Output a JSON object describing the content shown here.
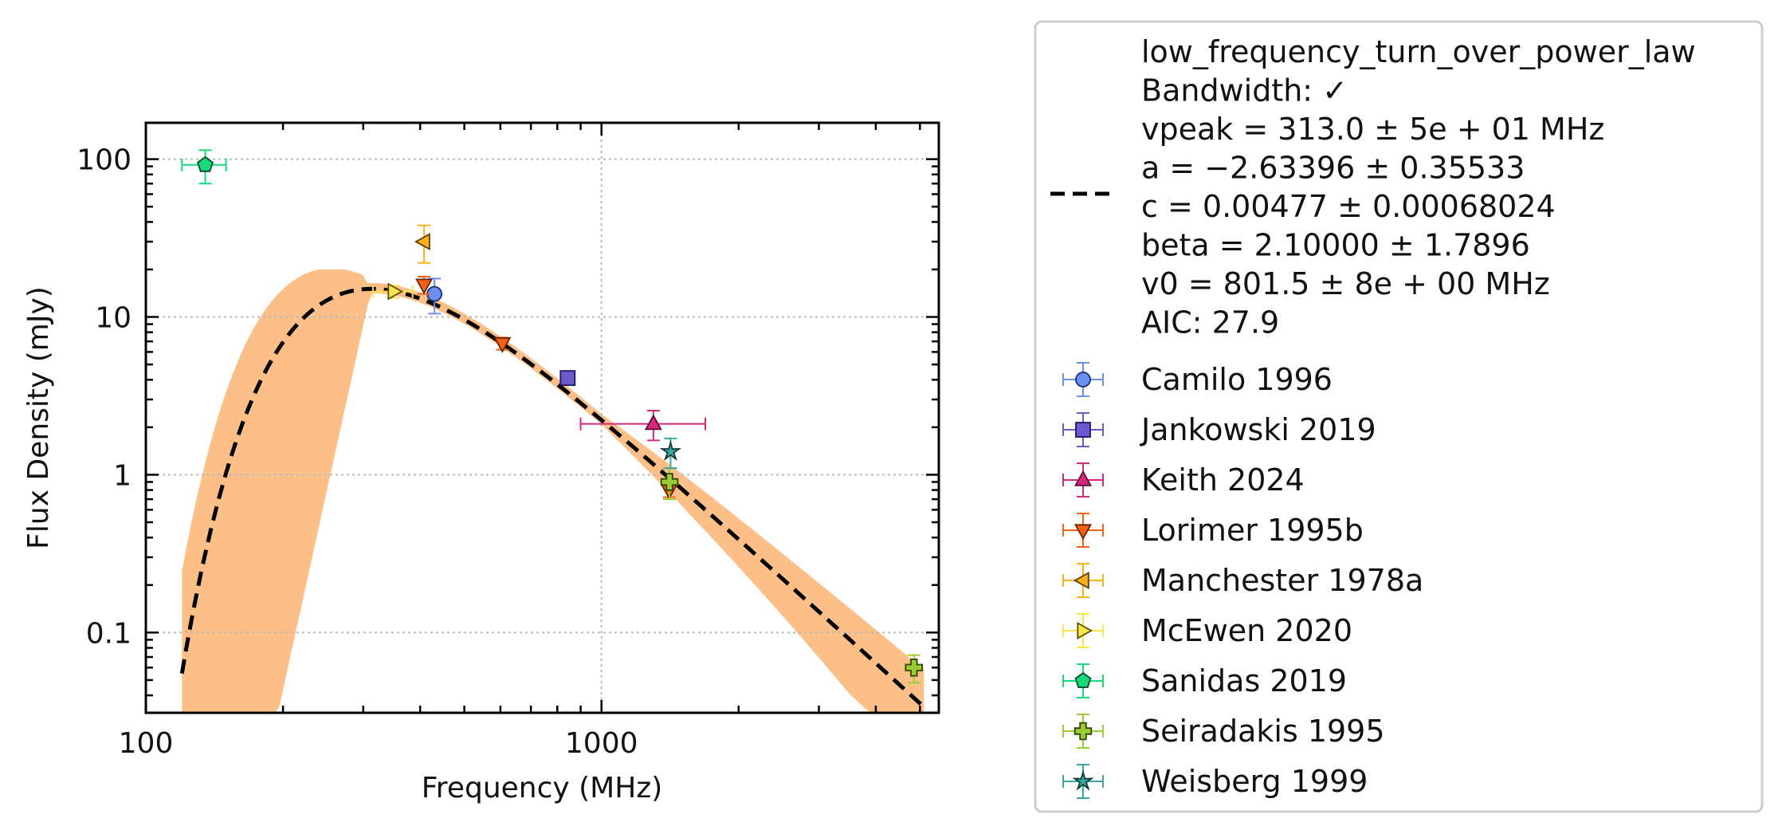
{
  "chart_data": {
    "type": "scatter",
    "title": "",
    "xlabel": "Frequency (MHz)",
    "ylabel": "Flux Density (mJy)",
    "xscale": "log",
    "yscale": "log",
    "xlim": [
      100,
      5500
    ],
    "ylim": [
      0.031,
      170
    ],
    "x_ticks": [
      100,
      1000
    ],
    "x_tick_labels": [
      "100",
      "1000"
    ],
    "y_ticks": [
      0.1,
      1,
      10,
      100
    ],
    "y_tick_labels": [
      "0.1",
      "1",
      "10",
      "100"
    ],
    "grid": true,
    "legend_position": "outside-right",
    "fit": {
      "model": "low_frequency_turn_over_power_law",
      "line_style": "dashed",
      "line_color": "#000000",
      "band_color": "#fdbf88",
      "parameters": {
        "vpeak": 313.0,
        "a": -2.63396,
        "c": 0.00477,
        "beta": 2.1,
        "v0": 801.5
      },
      "x_range": [
        120,
        5100
      ],
      "legend_lines": [
        "low_frequency_turn_over_power_law",
        "Bandwidth: ✓",
        "vpeak = 313.0 ± 5e + 01 MHz",
        "a = −2.63396 ± 0.35533",
        "c = 0.00477 ± 0.00068024",
        "beta = 2.10000 ± 1.7896",
        "v0 = 801.5 ± 8e + 00 MHz",
        "AIC: 27.9"
      ]
    },
    "series": [
      {
        "name": "Camilo 1996",
        "marker": "circle",
        "color": "#6b8ff0",
        "edge": "#1a2c6e",
        "points": [
          {
            "x": 430,
            "y": 14,
            "xerr": [
              0,
              0
            ],
            "yerr": [
              3.5,
              3.5
            ]
          }
        ]
      },
      {
        "name": "Jankowski 2019",
        "marker": "square",
        "color": "#6a5acd",
        "edge": "#1f1660",
        "points": [
          {
            "x": 843,
            "y": 4.1,
            "xerr": [
              0,
              0
            ],
            "yerr": [
              0.35,
              0.35
            ]
          }
        ]
      },
      {
        "name": "Keith 2024",
        "marker": "triangle-up",
        "color": "#d6287f",
        "edge": "#5c0a34",
        "points": [
          {
            "x": 1300,
            "y": 2.1,
            "xerr": [
              400,
              390
            ],
            "yerr": [
              0.45,
              0.45
            ]
          }
        ]
      },
      {
        "name": "Lorimer 1995b",
        "marker": "triangle-down",
        "color": "#f26318",
        "edge": "#6b2200",
        "points": [
          {
            "x": 408,
            "y": 16,
            "xerr": [
              0,
              0
            ],
            "yerr": [
              2,
              2
            ]
          },
          {
            "x": 606,
            "y": 6.8,
            "xerr": [
              0,
              0
            ],
            "yerr": [
              0.6,
              0.6
            ]
          },
          {
            "x": 1408,
            "y": 0.8,
            "xerr": [
              0,
              0
            ],
            "yerr": [
              0.08,
              0.08
            ]
          }
        ]
      },
      {
        "name": "Manchester 1978a",
        "marker": "triangle-left",
        "color": "#fbb117",
        "edge": "#5a3a00",
        "points": [
          {
            "x": 408,
            "y": 30,
            "xerr": [
              0,
              0
            ],
            "yerr": [
              8,
              8
            ]
          }
        ]
      },
      {
        "name": "McEwen 2020",
        "marker": "triangle-right",
        "color": "#fbe34a",
        "edge": "#5a4f00",
        "points": [
          {
            "x": 350,
            "y": 14.5,
            "xerr": [
              35,
              35
            ],
            "yerr": [
              1.3,
              1.3
            ]
          }
        ]
      },
      {
        "name": "Sanidas 2019",
        "marker": "pentagon",
        "color": "#17d97a",
        "edge": "#064a26",
        "points": [
          {
            "x": 135,
            "y": 92,
            "xerr": [
              15,
              15
            ],
            "yerr": [
              22,
              22
            ]
          }
        ]
      },
      {
        "name": "Seiradakis 1995",
        "marker": "plus",
        "color": "#9acd32",
        "edge": "#2d4400",
        "points": [
          {
            "x": 1410,
            "y": 0.9,
            "xerr": [
              0,
              0
            ],
            "yerr": [
              0.2,
              0.2
            ]
          },
          {
            "x": 4850,
            "y": 0.06,
            "xerr": [
              0,
              0
            ],
            "yerr": [
              0.012,
              0.012
            ]
          }
        ]
      },
      {
        "name": "Weisberg 1999",
        "marker": "star",
        "color": "#3aa8a0",
        "edge": "#0b3a36",
        "points": [
          {
            "x": 1418,
            "y": 1.4,
            "xerr": [
              0,
              0
            ],
            "yerr": [
              0.3,
              0.3
            ]
          }
        ]
      }
    ]
  }
}
